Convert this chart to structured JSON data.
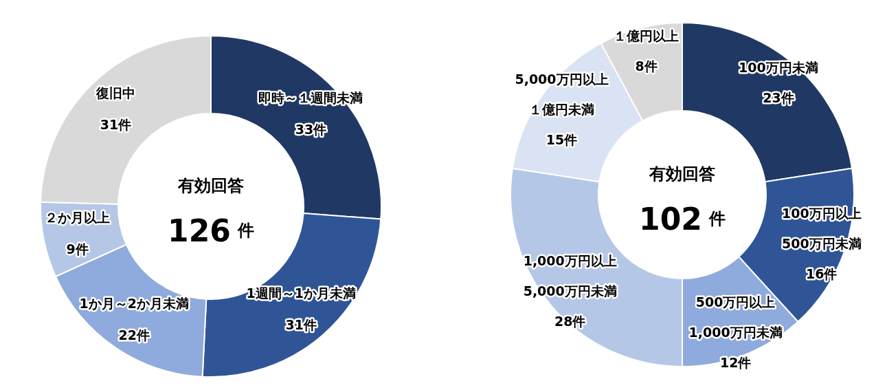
{
  "chart_data": [
    {
      "type": "donut",
      "categories": [
        "即時～１週間未満",
        "1週間～1か月未満",
        "1か月～2か月未満",
        "２か月以上",
        "復旧中"
      ],
      "values": [
        33,
        31,
        22,
        9,
        31
      ],
      "value_labels": [
        "33件",
        "31件",
        "22件",
        "9件",
        "31件"
      ],
      "colors": [
        "#203864",
        "#2f5597",
        "#8faadc",
        "#b4c7e7",
        "#d9d9d9"
      ],
      "annotations": [
        "有効回答",
        "126",
        "件"
      ]
    },
    {
      "type": "donut",
      "categories": [
        "100万円未満",
        "100万円以上500万円未満",
        "500万円以上1,000万円未満",
        "1,000万円以上5,000万円未満",
        "5,000万円以上１億円未満",
        "１億円以上"
      ],
      "values": [
        23,
        16,
        12,
        28,
        15,
        8
      ],
      "value_labels": [
        "23件",
        "16件",
        "12件",
        "28件",
        "15件",
        "8件"
      ],
      "colors": [
        "#203864",
        "#2f5597",
        "#8faadc",
        "#b4c7e7",
        "#dae3f3",
        "#d9d9d9"
      ],
      "annotations": [
        "有効回答",
        "102",
        "件"
      ]
    }
  ]
}
